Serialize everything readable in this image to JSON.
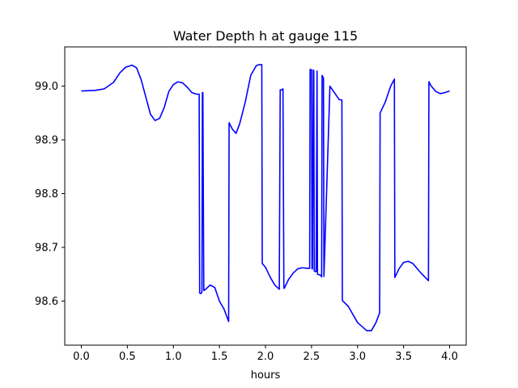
{
  "chart_data": {
    "type": "line",
    "title": "Water Depth h at gauge 115",
    "xlabel": "hours",
    "ylabel": "",
    "xlim": [
      -0.18,
      4.18
    ],
    "ylim": [
      98.518,
      99.073
    ],
    "xticks": [
      0.0,
      0.5,
      1.0,
      1.5,
      2.0,
      2.5,
      3.0,
      3.5,
      4.0
    ],
    "xtick_labels": [
      "0.0",
      "0.5",
      "1.0",
      "1.5",
      "2.0",
      "2.5",
      "3.0",
      "3.5",
      "4.0"
    ],
    "yticks": [
      98.6,
      98.7,
      98.8,
      98.9,
      99.0
    ],
    "ytick_labels": [
      "98.6",
      "98.7",
      "98.8",
      "98.9",
      "99.0"
    ],
    "grid": false,
    "series": [
      {
        "color": "#0000ff",
        "x": [
          0.0,
          0.15,
          0.25,
          0.35,
          0.42,
          0.48,
          0.55,
          0.6,
          0.65,
          0.7,
          0.75,
          0.8,
          0.85,
          0.9,
          0.95,
          1.0,
          1.05,
          1.1,
          1.15,
          1.2,
          1.25,
          1.28,
          1.285,
          1.3,
          1.31,
          1.315,
          1.32,
          1.33,
          1.335,
          1.35,
          1.4,
          1.45,
          1.5,
          1.55,
          1.6,
          1.605,
          1.64,
          1.68,
          1.72,
          1.78,
          1.84,
          1.9,
          1.93,
          1.96,
          1.965,
          2.0,
          2.05,
          2.1,
          2.15,
          2.16,
          2.18,
          2.19,
          2.2,
          2.205,
          2.25,
          2.3,
          2.35,
          2.4,
          2.45,
          2.48,
          2.485,
          2.49,
          2.5,
          2.505,
          2.51,
          2.52,
          2.525,
          2.53,
          2.54,
          2.55,
          2.56,
          2.565,
          2.6,
          2.61,
          2.615,
          2.63,
          2.635,
          2.7,
          2.8,
          2.83,
          2.835,
          2.9,
          3.0,
          3.1,
          3.15,
          3.2,
          3.24,
          3.245,
          3.3,
          3.36,
          3.4,
          3.405,
          3.45,
          3.5,
          3.55,
          3.6,
          3.65,
          3.7,
          3.77,
          3.775,
          3.8,
          3.85,
          3.9,
          3.95,
          4.0
        ],
        "y": [
          98.991,
          98.992,
          98.995,
          99.007,
          99.025,
          99.035,
          99.039,
          99.034,
          99.012,
          98.98,
          98.948,
          98.936,
          98.94,
          98.96,
          98.99,
          99.003,
          99.008,
          99.006,
          98.998,
          98.988,
          98.985,
          98.985,
          98.615,
          98.614,
          98.617,
          98.988,
          98.988,
          98.62,
          98.62,
          98.622,
          98.63,
          98.625,
          98.6,
          98.585,
          98.562,
          98.932,
          98.92,
          98.912,
          98.93,
          98.97,
          99.02,
          99.038,
          99.04,
          99.04,
          98.67,
          98.663,
          98.645,
          98.63,
          98.622,
          98.993,
          98.993,
          98.995,
          98.624,
          98.624,
          98.64,
          98.652,
          98.66,
          98.662,
          98.661,
          98.661,
          99.031,
          99.031,
          99.03,
          98.66,
          98.66,
          99.03,
          99.028,
          98.656,
          98.655,
          98.655,
          99.028,
          98.65,
          98.648,
          98.645,
          99.02,
          99.015,
          98.646,
          99.0,
          98.975,
          98.974,
          98.601,
          98.59,
          98.56,
          98.545,
          98.545,
          98.56,
          98.578,
          98.95,
          98.97,
          99.0,
          99.013,
          98.644,
          98.66,
          98.672,
          98.674,
          98.67,
          98.66,
          98.65,
          98.638,
          99.008,
          99.0,
          98.99,
          98.986,
          98.988,
          98.991
        ]
      }
    ]
  }
}
